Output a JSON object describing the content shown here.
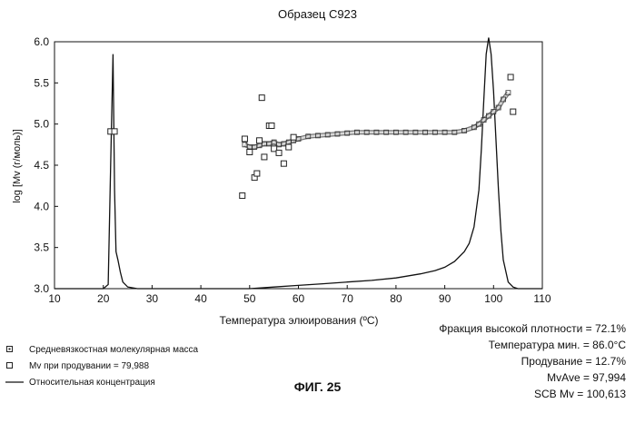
{
  "page": {
    "title": "Образец C923",
    "figure_label": "ФИГ. 25"
  },
  "legend": [
    {
      "label": "Средневязкостная молекулярная масса"
    },
    {
      "label": "Mv при продувании  = 79,988"
    },
    {
      "label": "Относительная концентрация"
    }
  ],
  "stats": [
    "Фракция высокой плотности = 72.1%",
    "Температура мин. = 86.0°C",
    "Продувание = 12.7%",
    "MvAve = 97,994",
    "SCB Mv = 100,613"
  ],
  "chart_data": {
    "type": "line",
    "title": "Образец C923",
    "xlabel": "Температура элюирования (ºC)",
    "ylabel": "log [Mv (г/моль)]",
    "xlim": [
      10,
      110
    ],
    "ylim": [
      3.0,
      6.0
    ],
    "x_ticks": [
      "10",
      "20",
      "30",
      "40",
      "50",
      "60",
      "70",
      "80",
      "90",
      "100",
      "110"
    ],
    "y_ticks": [
      "3.0",
      "3.5",
      "4.0",
      "4.5",
      "5.0",
      "5.5",
      "6.0"
    ],
    "grid": false,
    "series": [
      {
        "name": "Относительная концентрация",
        "style": "line",
        "x": [
          10,
          20,
          21,
          21.5,
          22,
          22.3,
          22.6,
          23,
          23.5,
          24,
          25,
          27,
          30,
          40,
          50,
          55,
          60,
          65,
          70,
          75,
          80,
          85,
          88,
          90,
          92,
          94,
          95,
          96,
          97,
          97.5,
          98,
          98.5,
          99,
          99.5,
          100,
          100.5,
          101,
          101.5,
          102,
          103,
          104,
          105,
          110
        ],
        "y": [
          3.0,
          3.0,
          3.05,
          4.5,
          5.85,
          4.2,
          3.45,
          3.35,
          3.2,
          3.08,
          3.02,
          3.0,
          3.0,
          3.0,
          3.0,
          3.02,
          3.04,
          3.06,
          3.08,
          3.1,
          3.13,
          3.18,
          3.22,
          3.26,
          3.33,
          3.45,
          3.55,
          3.75,
          4.2,
          4.7,
          5.3,
          5.85,
          6.05,
          5.85,
          5.4,
          4.8,
          4.2,
          3.7,
          3.35,
          3.08,
          3.02,
          3.0,
          3.0
        ]
      },
      {
        "name": "Средневязкостная молекулярная масса",
        "style": "dense-markers",
        "x": [
          49,
          50,
          51,
          52,
          53,
          54,
          55,
          56,
          57,
          58,
          59,
          60,
          62,
          64,
          66,
          68,
          70,
          72,
          74,
          76,
          78,
          80,
          82,
          84,
          86,
          88,
          90,
          92,
          94,
          96,
          97,
          98,
          99,
          100,
          101,
          102,
          103
        ],
        "y": [
          4.75,
          4.72,
          4.72,
          4.74,
          4.76,
          4.76,
          4.78,
          4.75,
          4.76,
          4.78,
          4.8,
          4.82,
          4.85,
          4.86,
          4.87,
          4.88,
          4.89,
          4.9,
          4.9,
          4.9,
          4.9,
          4.9,
          4.9,
          4.9,
          4.9,
          4.9,
          4.9,
          4.9,
          4.92,
          4.96,
          5.0,
          5.05,
          5.1,
          5.15,
          5.2,
          5.3,
          5.38
        ]
      },
      {
        "name": "Mv при продувании",
        "style": "markers",
        "x": [
          21.5,
          22.3,
          48.5,
          49,
          50,
          51,
          51.5,
          52,
          52.5,
          53,
          54,
          54.5,
          55,
          56,
          57,
          58,
          59,
          103.5,
          104
        ],
        "y": [
          4.91,
          4.91,
          4.13,
          4.82,
          4.66,
          4.35,
          4.4,
          4.8,
          5.32,
          4.6,
          4.98,
          4.98,
          4.7,
          4.65,
          4.52,
          4.72,
          4.84,
          5.57,
          5.15
        ]
      }
    ]
  }
}
